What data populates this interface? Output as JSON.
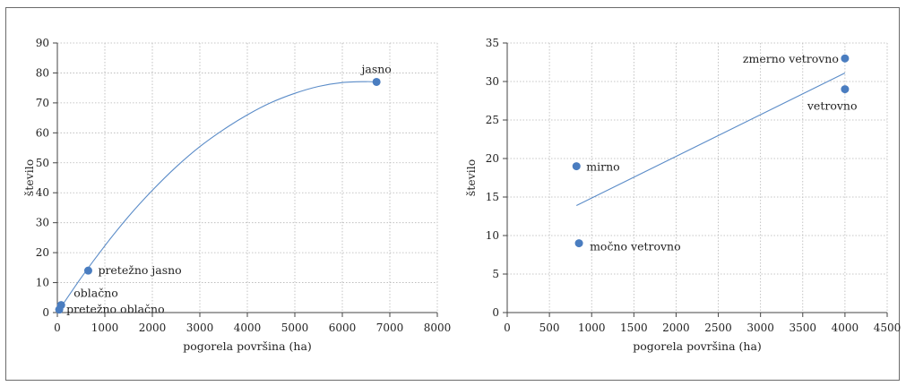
{
  "chart_data": [
    {
      "type": "scatter",
      "title": "",
      "xlabel": "pogorela površina (ha)",
      "ylabel": "število",
      "xlim": [
        0,
        8000
      ],
      "ylim": [
        0,
        90
      ],
      "xticks": [
        0,
        1000,
        2000,
        3000,
        4000,
        5000,
        6000,
        7000,
        8000
      ],
      "yticks": [
        0,
        10,
        20,
        30,
        40,
        50,
        60,
        70,
        80,
        90
      ],
      "grid": true,
      "point_color": "#4a7dc0",
      "line_color": "#5b8cc8",
      "points": [
        {
          "label": "jasno",
          "x": 6720,
          "y": 77
        },
        {
          "label": "pretežno jasno",
          "x": 650,
          "y": 14
        },
        {
          "label": "oblačno",
          "x": 80,
          "y": 2.5
        },
        {
          "label": "pretežno oblačno",
          "x": 40,
          "y": 1
        }
      ],
      "trendline": {
        "type": "polynomial",
        "x": [
          0,
          6720
        ],
        "curve_x": [
          0,
          500,
          1000,
          1500,
          2000,
          2500,
          3000,
          3500,
          4000,
          4500,
          5000,
          5500,
          6000,
          6500,
          6720
        ],
        "curve_y": [
          0,
          11.6,
          22.3,
          32.1,
          40.8,
          48.6,
          55.4,
          61.1,
          66.0,
          70.1,
          73.2,
          75.5,
          76.8,
          77.1,
          77.0
        ]
      }
    },
    {
      "type": "scatter",
      "title": "",
      "xlabel": "pogorela površina (ha)",
      "ylabel": "število",
      "xlim": [
        0,
        4500
      ],
      "ylim": [
        0,
        35
      ],
      "xticks": [
        0,
        500,
        1000,
        1500,
        2000,
        2500,
        3000,
        3500,
        4000,
        4500
      ],
      "yticks": [
        0,
        5,
        10,
        15,
        20,
        25,
        30,
        35
      ],
      "grid": true,
      "point_color": "#4a7dc0",
      "line_color": "#5b8cc8",
      "points": [
        {
          "label": "zmerno vetrovno",
          "x": 4000,
          "y": 33
        },
        {
          "label": "vetrovno",
          "x": 4000,
          "y": 29
        },
        {
          "label": "mirno",
          "x": 820,
          "y": 19
        },
        {
          "label": "močno vetrovno",
          "x": 850,
          "y": 9
        }
      ],
      "trendline": {
        "type": "linear",
        "x": [
          820,
          4000
        ],
        "y": [
          13.9,
          31.1
        ]
      }
    }
  ]
}
